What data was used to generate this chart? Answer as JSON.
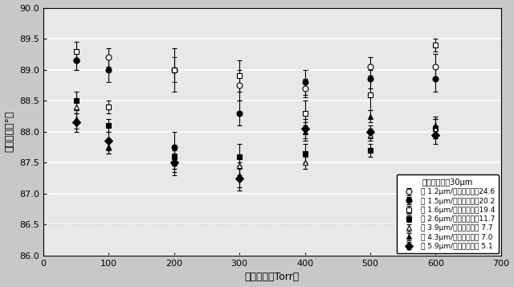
{
  "title": "",
  "xlabel": "成長圧力（Torr）",
  "ylabel": "成長角度（°）",
  "xlim": [
    0,
    700
  ],
  "ylim": [
    86.0,
    90.0
  ],
  "yticks": [
    86.0,
    86.5,
    87.0,
    87.5,
    88.0,
    88.5,
    89.0,
    89.5,
    90.0
  ],
  "xticks": [
    0,
    100,
    200,
    300,
    400,
    500,
    600,
    700
  ],
  "legend_title": "トレンチ深さ30μm",
  "series": [
    {
      "label": "幅 1.2μm/アスペクト比24.6",
      "marker": "o",
      "filled": false,
      "x": [
        50,
        100,
        200,
        300,
        400,
        500,
        600
      ],
      "y": [
        89.15,
        89.2,
        89.0,
        88.75,
        88.7,
        89.05,
        89.05
      ],
      "yerr": [
        0.15,
        0.15,
        0.2,
        0.25,
        0.15,
        0.15,
        0.2
      ]
    },
    {
      "label": "幅 1.5μm/アスペクト比20.2",
      "marker": "o",
      "filled": true,
      "x": [
        50,
        100,
        200,
        300,
        400,
        500,
        600
      ],
      "y": [
        89.15,
        89.0,
        87.75,
        88.3,
        88.8,
        88.85,
        88.85
      ],
      "yerr": [
        0.15,
        0.2,
        0.25,
        0.2,
        0.2,
        0.15,
        0.2
      ]
    },
    {
      "label": "幅 1.6μm/アスペクト比19.4",
      "marker": "s",
      "filled": false,
      "x": [
        50,
        100,
        200,
        300,
        400,
        500,
        600
      ],
      "y": [
        89.3,
        88.4,
        89.0,
        88.9,
        88.3,
        88.6,
        89.4
      ],
      "yerr": [
        0.15,
        0.1,
        0.35,
        0.25,
        0.2,
        0.25,
        0.1
      ]
    },
    {
      "label": "幅 2.6μm/アスペクト比11.7",
      "marker": "s",
      "filled": true,
      "x": [
        50,
        100,
        200,
        300,
        400,
        500,
        600
      ],
      "y": [
        88.5,
        88.1,
        87.6,
        87.6,
        87.65,
        87.7,
        88.05
      ],
      "yerr": [
        0.15,
        0.1,
        0.15,
        0.2,
        0.15,
        0.1,
        0.15
      ]
    },
    {
      "label": "幅 3.9μm/アスペクト比 7.7",
      "marker": "^",
      "filled": false,
      "x": [
        50,
        100,
        200,
        300,
        400,
        500,
        600
      ],
      "y": [
        88.4,
        87.75,
        87.5,
        87.45,
        87.5,
        87.95,
        88.05
      ],
      "yerr": [
        0.1,
        0.1,
        0.1,
        0.15,
        0.1,
        0.1,
        0.15
      ]
    },
    {
      "label": "幅 4.3μm/アスペクト比 7.0",
      "marker": "^",
      "filled": true,
      "x": [
        50,
        100,
        200,
        300,
        400,
        500,
        600
      ],
      "y": [
        88.2,
        87.75,
        87.5,
        87.3,
        88.0,
        88.25,
        88.1
      ],
      "yerr": [
        0.15,
        0.1,
        0.15,
        0.2,
        0.15,
        0.1,
        0.15
      ]
    },
    {
      "label": "幅 5.9μm/アスペクト比 5.1",
      "marker": "D",
      "filled": true,
      "x": [
        50,
        100,
        200,
        300,
        400,
        500,
        600
      ],
      "y": [
        88.15,
        87.85,
        87.5,
        87.25,
        88.05,
        88.0,
        87.95
      ],
      "yerr": [
        0.15,
        0.15,
        0.2,
        0.2,
        0.15,
        0.1,
        0.15
      ]
    }
  ],
  "plot_bg": "#e8e8e8",
  "figure_bg": "#c8c8c8",
  "grid_color": "#ffffff",
  "dotted_line_y": 86.5,
  "dotted_line_color": "#aaaaaa"
}
